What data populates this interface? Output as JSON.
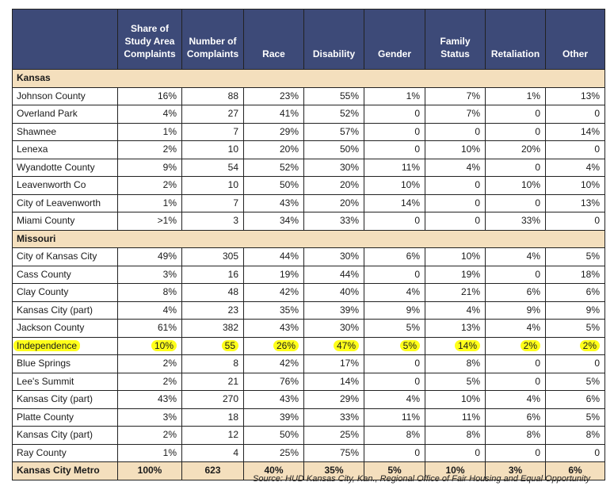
{
  "headers": [
    "",
    "Share of Study Area Complaints",
    "Number of Complaints",
    "Race",
    "Disability",
    "Gender",
    "Family Status",
    "Retaliation",
    "Other"
  ],
  "highlight_color": "#ffff1a",
  "header_color": "#3d4a78",
  "section_color": "#f4dfbd",
  "sections": [
    {
      "name": "Kansas",
      "rows": [
        [
          "Johnson County",
          "16%",
          "88",
          "23%",
          "55%",
          "1%",
          "7%",
          "1%",
          "13%"
        ],
        [
          "Overland Park",
          "4%",
          "27",
          "41%",
          "52%",
          "0",
          "7%",
          "0",
          "0"
        ],
        [
          "Shawnee",
          "1%",
          "7",
          "29%",
          "57%",
          "0",
          "0",
          "0",
          "14%"
        ],
        [
          "Lenexa",
          "2%",
          "10",
          "20%",
          "50%",
          "0",
          "10%",
          "20%",
          "0"
        ],
        [
          "Wyandotte County",
          "9%",
          "54",
          "52%",
          "30%",
          "11%",
          "4%",
          "0",
          "4%"
        ],
        [
          "Leavenworth Co",
          "2%",
          "10",
          "50%",
          "20%",
          "10%",
          "0",
          "10%",
          "10%"
        ],
        [
          "City of Leavenworth",
          "1%",
          "7",
          "43%",
          "20%",
          "14%",
          "0",
          "0",
          "13%"
        ],
        [
          "Miami County",
          ">1%",
          "3",
          "34%",
          "33%",
          "0",
          "0",
          "33%",
          "0"
        ]
      ]
    },
    {
      "name": "Missouri",
      "rows": [
        [
          "City of Kansas City",
          "49%",
          "305",
          "44%",
          "30%",
          "6%",
          "10%",
          "4%",
          "5%"
        ],
        [
          "Cass County",
          "3%",
          "16",
          "19%",
          "44%",
          "0",
          "19%",
          "0",
          "18%"
        ],
        [
          "Clay County",
          "8%",
          "48",
          "42%",
          "40%",
          "4%",
          "21%",
          "6%",
          "6%"
        ],
        [
          "Kansas City (part)",
          "4%",
          "23",
          "35%",
          "39%",
          "9%",
          "4%",
          "9%",
          "9%"
        ],
        [
          "Jackson County",
          "61%",
          "382",
          "43%",
          "30%",
          "5%",
          "13%",
          "4%",
          "5%"
        ],
        [
          "Independence",
          "10%",
          "55",
          "26%",
          "47%",
          "5%",
          "14%",
          "2%",
          "2%"
        ],
        [
          "Blue Springs",
          "2%",
          "8",
          "42%",
          "17%",
          "0",
          "8%",
          "0",
          "0"
        ],
        [
          "Lee's Summit",
          "2%",
          "21",
          "76%",
          "14%",
          "0",
          "5%",
          "0",
          "5%"
        ],
        [
          "Kansas City (part)",
          "43%",
          "270",
          "43%",
          "29%",
          "4%",
          "10%",
          "4%",
          "6%"
        ],
        [
          "Platte County",
          "3%",
          "18",
          "39%",
          "33%",
          "11%",
          "11%",
          "6%",
          "5%"
        ],
        [
          "Kansas City (part)",
          "2%",
          "12",
          "50%",
          "25%",
          "8%",
          "8%",
          "8%",
          "8%"
        ],
        [
          "Ray County",
          "1%",
          "4",
          "25%",
          "75%",
          "0",
          "0",
          "0",
          "0"
        ]
      ]
    }
  ],
  "highlighted_row": "Independence",
  "total": [
    "Kansas City Metro",
    "100%",
    "623",
    "40%",
    "35%",
    "5%",
    "10%",
    "3%",
    "6%"
  ],
  "source": "Source: HUD Kansas City, Kan., Regional Office of Fair Housing and Equal Opportunity"
}
